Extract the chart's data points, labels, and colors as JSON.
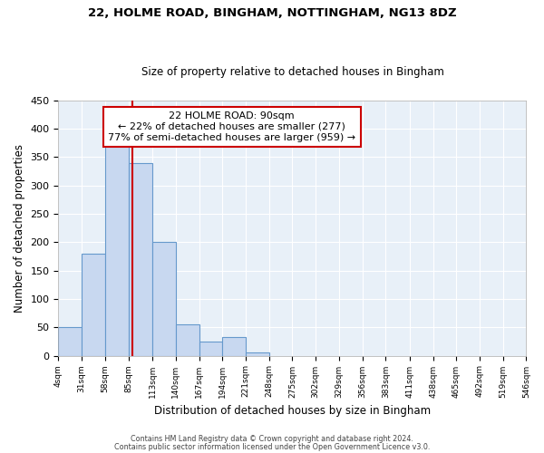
{
  "title": "22, HOLME ROAD, BINGHAM, NOTTINGHAM, NG13 8DZ",
  "subtitle": "Size of property relative to detached houses in Bingham",
  "xlabel": "Distribution of detached houses by size in Bingham",
  "ylabel": "Number of detached properties",
  "bin_edges": [
    4,
    31,
    58,
    85,
    113,
    140,
    167,
    194,
    221,
    248,
    275,
    302,
    329,
    356,
    383,
    411,
    438,
    465,
    492,
    519,
    546
  ],
  "bar_heights": [
    50,
    180,
    370,
    340,
    200,
    55,
    25,
    33,
    5,
    0,
    0,
    0,
    0,
    0,
    0,
    0,
    0,
    0,
    0,
    0
  ],
  "bar_color": "#c8d8f0",
  "bar_edge_color": "#6699cc",
  "property_size": 90,
  "red_line_color": "#cc0000",
  "annotation_title": "22 HOLME ROAD: 90sqm",
  "annotation_line1": "← 22% of detached houses are smaller (277)",
  "annotation_line2": "77% of semi-detached houses are larger (959) →",
  "annotation_box_color": "#ffffff",
  "annotation_box_edge_color": "#cc0000",
  "ylim": [
    0,
    450
  ],
  "footnote1": "Contains HM Land Registry data © Crown copyright and database right 2024.",
  "footnote2": "Contains public sector information licensed under the Open Government Licence v3.0.",
  "background_color": "#e8f0f8",
  "tick_labels": [
    "4sqm",
    "31sqm",
    "58sqm",
    "85sqm",
    "113sqm",
    "140sqm",
    "167sqm",
    "194sqm",
    "221sqm",
    "248sqm",
    "275sqm",
    "302sqm",
    "329sqm",
    "356sqm",
    "383sqm",
    "411sqm",
    "438sqm",
    "465sqm",
    "492sqm",
    "519sqm",
    "546sqm"
  ],
  "figsize": [
    6.0,
    5.0
  ],
  "dpi": 100
}
